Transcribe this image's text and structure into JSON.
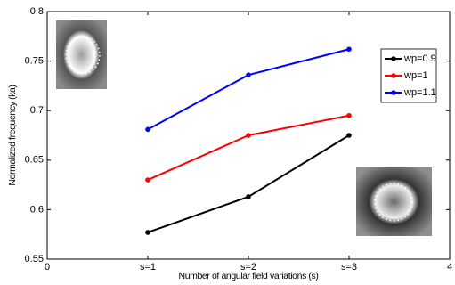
{
  "chart_data": {
    "type": "line",
    "xlabel": "Number of angular field variations (s)",
    "ylabel": "Normalized frequency (ka)",
    "x": [
      1,
      2,
      3
    ],
    "series": [
      {
        "name": "wp=0.9",
        "color": "#000000",
        "values": [
          0.577,
          0.613,
          0.675
        ]
      },
      {
        "name": "wp=1",
        "color": "#ff0000",
        "values": [
          0.63,
          0.675,
          0.695
        ]
      },
      {
        "name": "wp=1.1",
        "color": "#0000ff",
        "values": [
          0.681,
          0.736,
          0.762
        ]
      }
    ],
    "xlim": [
      0,
      4
    ],
    "xticks": [
      0,
      {
        "value": 1,
        "label": "s=1"
      },
      {
        "value": 2,
        "label": "s=2"
      },
      {
        "value": 3,
        "label": "s=3"
      },
      4
    ],
    "ylim": [
      0.55,
      0.8
    ],
    "yticks": [
      0.55,
      0.6,
      0.65,
      0.7,
      0.75,
      0.8
    ],
    "grid": false,
    "legend": "upper right"
  }
}
